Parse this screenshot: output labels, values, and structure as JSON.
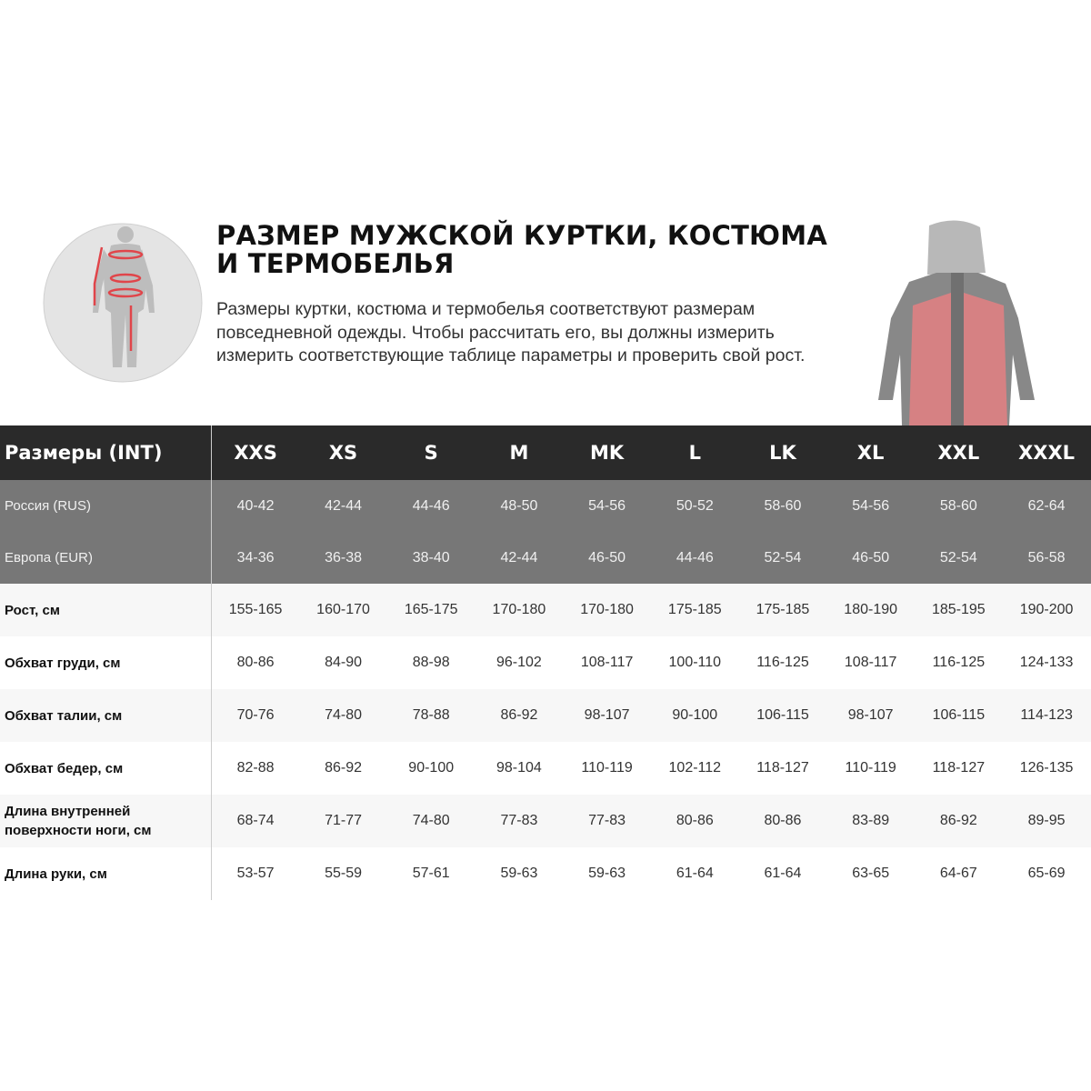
{
  "header": {
    "title": "РАЗМЕР МУЖСКОЙ КУРТКИ, КОСТЮМА И ТЕРМОБЕЛЬЯ",
    "description": "Размеры куртки, костюма и термобелья соответствуют размерам повседневной одежды. Чтобы рассчитать его, вы должны измерить измерить соответствующие таблице параметры и проверить свой рост."
  },
  "colors": {
    "header_row": "#2a2a2a",
    "region_rows": "#777777",
    "accent": "#e0454a"
  },
  "table": {
    "header_label": "Размеры (INT)",
    "sizes": [
      "XXS",
      "XS",
      "S",
      "M",
      "MK",
      "L",
      "LK",
      "XL",
      "XXL",
      "XXXL"
    ],
    "region_rows": [
      {
        "label": "Россия (RUS)",
        "values": [
          "40-42",
          "42-44",
          "44-46",
          "48-50",
          "54-56",
          "50-52",
          "58-60",
          "54-56",
          "58-60",
          "62-64"
        ]
      },
      {
        "label": "Европа (EUR)",
        "values": [
          "34-36",
          "36-38",
          "38-40",
          "42-44",
          "46-50",
          "44-46",
          "52-54",
          "46-50",
          "52-54",
          "56-58"
        ]
      }
    ],
    "measure_rows": [
      {
        "label": "Рост, см",
        "values": [
          "155-165",
          "160-170",
          "165-175",
          "170-180",
          "170-180",
          "175-185",
          "175-185",
          "180-190",
          "185-195",
          "190-200"
        ]
      },
      {
        "label": "Обхват груди, см",
        "values": [
          "80-86",
          "84-90",
          "88-98",
          "96-102",
          "108-117",
          "100-110",
          "116-125",
          "108-117",
          "116-125",
          "124-133"
        ]
      },
      {
        "label": "Обхват талии, см",
        "values": [
          "70-76",
          "74-80",
          "78-88",
          "86-92",
          "98-107",
          "90-100",
          "106-115",
          "98-107",
          "106-115",
          "114-123"
        ]
      },
      {
        "label": "Обхват бедер, см",
        "values": [
          "82-88",
          "86-92",
          "90-100",
          "98-104",
          "110-119",
          "102-112",
          "118-127",
          "110-119",
          "118-127",
          "126-135"
        ]
      },
      {
        "label": "Длина внутренней поверхности ноги, см",
        "values": [
          "68-74",
          "71-77",
          "74-80",
          "77-83",
          "77-83",
          "80-86",
          "80-86",
          "83-89",
          "86-92",
          "89-95"
        ]
      },
      {
        "label": "Длина руки, см",
        "values": [
          "53-57",
          "55-59",
          "57-61",
          "59-63",
          "59-63",
          "61-64",
          "61-64",
          "63-65",
          "64-67",
          "65-69"
        ]
      }
    ]
  }
}
